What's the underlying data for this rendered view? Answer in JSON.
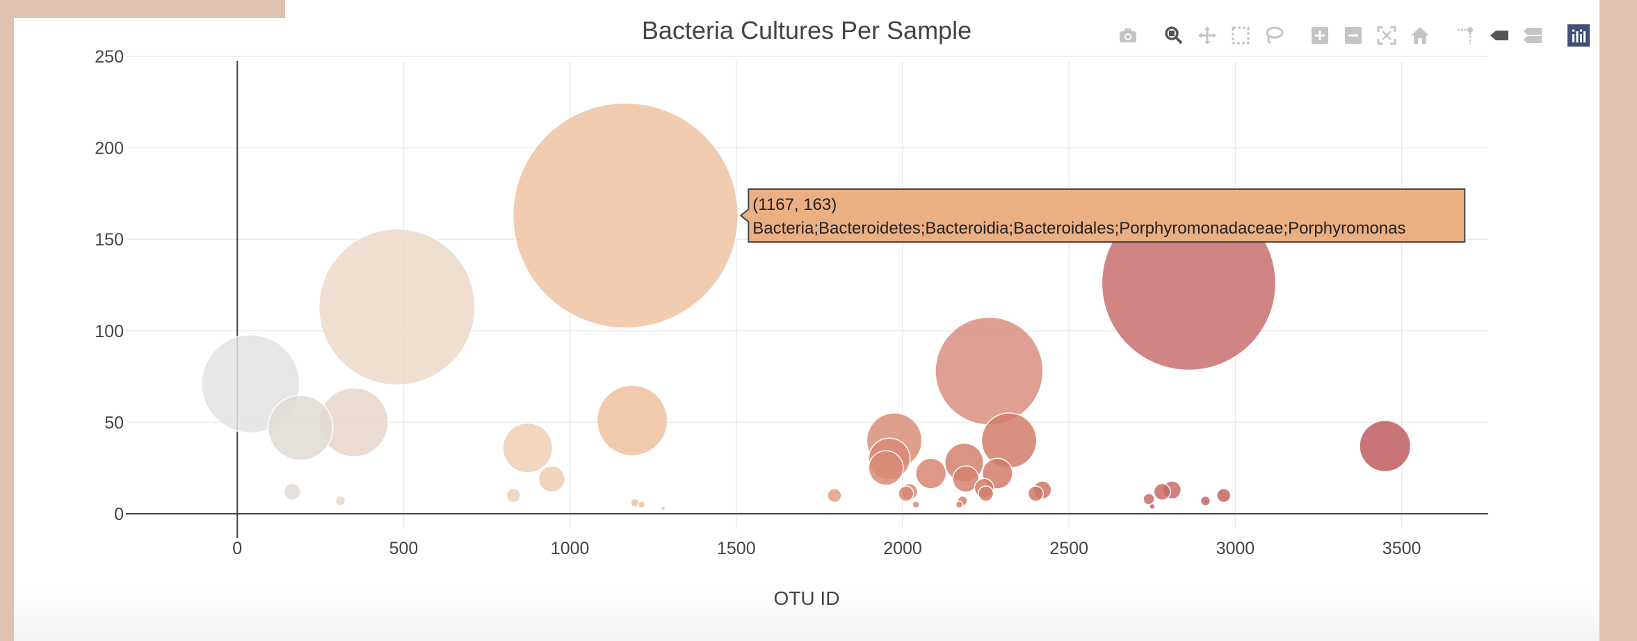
{
  "chart_data": {
    "type": "scatter",
    "title": "Bacteria Cultures Per Sample",
    "xlabel": "OTU ID",
    "ylabel": "",
    "xlim": [
      -360,
      3760
    ],
    "ylim": [
      -8,
      258
    ],
    "xticks": [
      0,
      500,
      1000,
      1500,
      2000,
      2500,
      3000,
      3500
    ],
    "yticks": [
      0,
      50,
      100,
      150,
      200,
      250
    ],
    "grid": true,
    "points": [
      {
        "x": 40,
        "y": 71,
        "color": "#e3e3e3"
      },
      {
        "x": 190,
        "y": 47,
        "color": "#e2dad3"
      },
      {
        "x": 350,
        "y": 50,
        "color": "#e6d6c8"
      },
      {
        "x": 480,
        "y": 113,
        "color": "#ecd9c9"
      },
      {
        "x": 165,
        "y": 12,
        "color": "#e0dad5"
      },
      {
        "x": 310,
        "y": 7,
        "color": "#e6d8cb"
      },
      {
        "x": 873,
        "y": 36,
        "color": "#f0cfb3"
      },
      {
        "x": 945,
        "y": 19,
        "color": "#efcdb1"
      },
      {
        "x": 830,
        "y": 10,
        "color": "#f0cfb3"
      },
      {
        "x": 1167,
        "y": 163,
        "color": "#efc3a2"
      },
      {
        "x": 1187,
        "y": 51,
        "color": "#eec19f"
      },
      {
        "x": 1195,
        "y": 6,
        "color": "#eec19f"
      },
      {
        "x": 1215,
        "y": 5,
        "color": "#eec19f"
      },
      {
        "x": 1280,
        "y": 3,
        "color": "#ecbd9b"
      },
      {
        "x": 1795,
        "y": 10,
        "color": "#e39c84"
      },
      {
        "x": 1975,
        "y": 40,
        "color": "#da8d79"
      },
      {
        "x": 1960,
        "y": 30,
        "color": "#d98a76"
      },
      {
        "x": 1950,
        "y": 25,
        "color": "#d98a76"
      },
      {
        "x": 2020,
        "y": 12,
        "color": "#d98a76"
      },
      {
        "x": 2010,
        "y": 11,
        "color": "#d98a76"
      },
      {
        "x": 2040,
        "y": 5,
        "color": "#d98a76"
      },
      {
        "x": 2085,
        "y": 22,
        "color": "#d78672"
      },
      {
        "x": 2185,
        "y": 28,
        "color": "#d5806d"
      },
      {
        "x": 2190,
        "y": 19,
        "color": "#d5806d"
      },
      {
        "x": 2180,
        "y": 7,
        "color": "#d5806d"
      },
      {
        "x": 2170,
        "y": 5,
        "color": "#d5806d"
      },
      {
        "x": 2260,
        "y": 78,
        "color": "#d98e7f"
      },
      {
        "x": 2320,
        "y": 40,
        "color": "#d37c6b"
      },
      {
        "x": 2285,
        "y": 22,
        "color": "#d37c6b"
      },
      {
        "x": 2245,
        "y": 14,
        "color": "#d37c6b"
      },
      {
        "x": 2250,
        "y": 11,
        "color": "#d37c6b"
      },
      {
        "x": 2400,
        "y": 11,
        "color": "#d07767"
      },
      {
        "x": 2420,
        "y": 13,
        "color": "#d07767"
      },
      {
        "x": 2860,
        "y": 126,
        "color": "#c86f6f"
      },
      {
        "x": 2740,
        "y": 8,
        "color": "#c86a66"
      },
      {
        "x": 2780,
        "y": 12,
        "color": "#c86a66"
      },
      {
        "x": 2810,
        "y": 13,
        "color": "#c86a66"
      },
      {
        "x": 2910,
        "y": 7,
        "color": "#c46564"
      },
      {
        "x": 2965,
        "y": 10,
        "color": "#c46564"
      },
      {
        "x": 2750,
        "y": 4,
        "color": "#c46564"
      },
      {
        "x": 3450,
        "y": 37,
        "color": "#c05d5f"
      }
    ],
    "hover": {
      "point": {
        "x": 1167,
        "y": 163
      },
      "line1": "(1167, 163)",
      "line2": "Bacteria;Bacteroidetes;Bacteroidia;Bacteroidales;Porphyromonadaceae;Porphyromonas",
      "bgcolor": "#ecaf82"
    }
  },
  "modebar": {
    "buttons": [
      "camera-icon",
      "zoom-icon",
      "pan-icon",
      "box-select-icon",
      "lasso-icon",
      "zoom-in-icon",
      "zoom-out-icon",
      "autoscale-icon",
      "reset-axes-icon",
      "spike-lines-icon",
      "hover-closest-icon",
      "hover-compare-icon",
      "plotly-logo-icon"
    ],
    "active": "zoom-icon"
  }
}
